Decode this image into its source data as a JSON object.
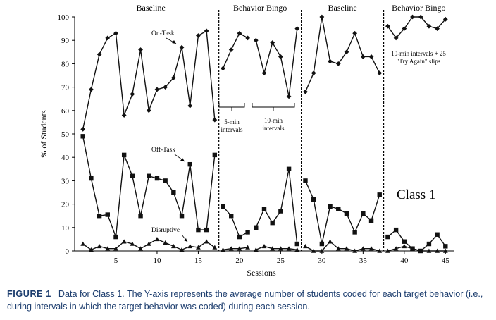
{
  "chart_data": {
    "type": "line",
    "xlabel": "Sessions",
    "ylabel": "% of Students",
    "xlim": [
      0,
      46
    ],
    "ylim": [
      0,
      100
    ],
    "x_ticks": [
      5,
      10,
      15,
      20,
      25,
      30,
      35,
      40,
      45
    ],
    "y_ticks": [
      0,
      10,
      20,
      30,
      40,
      50,
      60,
      70,
      80,
      90,
      100
    ],
    "grid": false,
    "phases": [
      {
        "label": "Baseline",
        "sessions": [
          1,
          17
        ]
      },
      {
        "label": "Behavior Bingo",
        "sessions": [
          18,
          27
        ]
      },
      {
        "label": "Baseline",
        "sessions": [
          28,
          37
        ]
      },
      {
        "label": "Behavior Bingo",
        "sessions": [
          38,
          45
        ]
      }
    ],
    "phase_change_after": [
      17.5,
      27.5,
      37.5
    ],
    "series": [
      {
        "name": "On-Task",
        "marker": "diamond",
        "segments": [
          {
            "x": [
              1,
              2,
              3,
              4,
              5,
              6,
              7,
              8,
              9,
              10,
              11,
              12,
              13,
              14,
              15,
              16,
              17
            ],
            "y": [
              52,
              69,
              84,
              91,
              93,
              58,
              67,
              86,
              60,
              69,
              70,
              74,
              87,
              62,
              92,
              94,
              56
            ]
          },
          {
            "x": [
              18,
              19,
              20,
              21
            ],
            "y": [
              78,
              86,
              93,
              91
            ]
          },
          {
            "x": [
              22,
              23,
              24,
              25,
              26,
              27
            ],
            "y": [
              90,
              76,
              89,
              83,
              66,
              95
            ]
          },
          {
            "x": [
              28,
              29,
              30,
              31,
              32,
              33,
              34,
              35,
              36,
              37
            ],
            "y": [
              68,
              76,
              100,
              81,
              80,
              85,
              93,
              83,
              83,
              76
            ]
          },
          {
            "x": [
              38,
              39,
              40,
              41,
              42,
              43,
              44,
              45
            ],
            "y": [
              96,
              91,
              95,
              100,
              100,
              96,
              95,
              99
            ]
          }
        ]
      },
      {
        "name": "Off-Task",
        "marker": "square",
        "segments": [
          {
            "x": [
              1,
              2,
              3,
              4,
              5,
              6,
              7,
              8,
              9,
              10,
              11,
              12,
              13,
              14,
              15,
              16,
              17
            ],
            "y": [
              49,
              31,
              15,
              15.5,
              6,
              41,
              32,
              15,
              32,
              31,
              30,
              25,
              15,
              37,
              9,
              9,
              41
            ]
          },
          {
            "x": [
              18,
              19,
              20,
              21
            ],
            "y": [
              19,
              15,
              6,
              8
            ]
          },
          {
            "x": [
              22,
              23,
              24,
              25,
              26,
              27
            ],
            "y": [
              10,
              18,
              12,
              17,
              35,
              3
            ]
          },
          {
            "x": [
              28,
              29,
              30,
              31,
              32,
              33,
              34,
              35,
              36,
              37
            ],
            "y": [
              30,
              22,
              3,
              19,
              18,
              16,
              8,
              16,
              13,
              24
            ]
          },
          {
            "x": [
              38,
              39,
              40,
              41,
              42,
              43,
              44,
              45
            ],
            "y": [
              6,
              9,
              4,
              1,
              0,
              3,
              7,
              2
            ]
          }
        ]
      },
      {
        "name": "Disruptive",
        "marker": "triangle",
        "segments": [
          {
            "x": [
              1,
              2,
              3,
              4,
              5,
              6,
              7,
              8,
              9,
              10,
              11,
              12,
              13,
              14,
              15,
              16,
              17
            ],
            "y": [
              3,
              0.5,
              2,
              1,
              1,
              4,
              3,
              1,
              3,
              5,
              3.5,
              2,
              0.5,
              2,
              1.5,
              4,
              1.5
            ]
          },
          {
            "x": [
              18,
              19,
              20,
              21
            ],
            "y": [
              0.5,
              1,
              1,
              1.5
            ]
          },
          {
            "x": [
              22,
              23,
              24,
              25,
              26,
              27
            ],
            "y": [
              0.5,
              2,
              1,
              1,
              1,
              0.5
            ]
          },
          {
            "x": [
              28,
              29,
              30,
              31,
              32,
              33,
              34,
              35,
              36,
              37
            ],
            "y": [
              2,
              0,
              0,
              4,
              1,
              1,
              0,
              1,
              1,
              0
            ]
          },
          {
            "x": [
              38,
              39,
              40,
              41,
              42,
              43,
              44,
              45
            ],
            "y": [
              0,
              1,
              2,
              1,
              0,
              0,
              0,
              0
            ]
          }
        ]
      }
    ],
    "annotations": {
      "on_task": "On-Task",
      "off_task": "Off-Task",
      "disruptive": "Disruptive",
      "five_min_line1": "5-min",
      "five_min_line2": "intervals",
      "ten_min_line1": "10-min",
      "ten_min_line2": "intervals",
      "slips_line1": "10-min intervals + 25",
      "slips_line2": "\"Try Again\" slips",
      "class_label": "Class 1"
    }
  },
  "caption": {
    "figure_label": "FIGURE 1",
    "text": "Data for Class 1. The Y-axis represents the average number of students coded for each target behavior (i.e., during intervals in which the target behavior was coded) during each session."
  }
}
